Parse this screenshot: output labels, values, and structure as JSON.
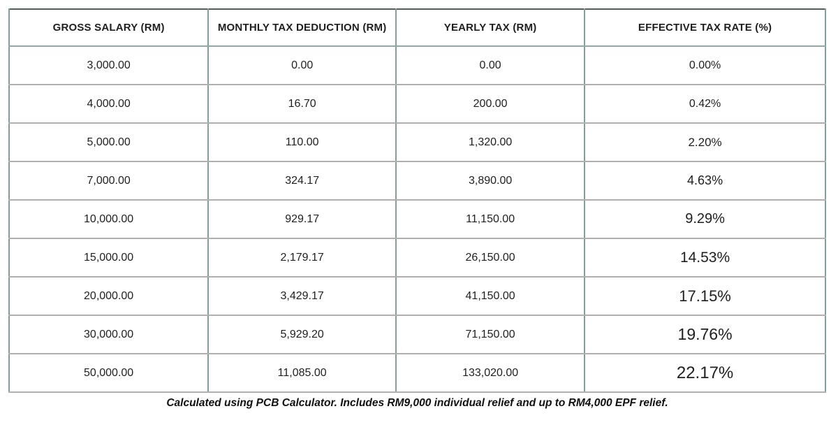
{
  "chart_data": {
    "type": "table",
    "columns": [
      "GROSS SALARY (RM)",
      "MONTHLY TAX DEDUCTION (RM)",
      "YEARLY TAX (RM)",
      "EFFECTIVE TAX RATE (%)"
    ],
    "rows": [
      [
        "3,000.00",
        "0.00",
        "0.00",
        "0.00%"
      ],
      [
        "4,000.00",
        "16.70",
        "200.00",
        "0.42%"
      ],
      [
        "5,000.00",
        "110.00",
        "1,320.00",
        "2.20%"
      ],
      [
        "7,000.00",
        "324.17",
        "3,890.00",
        "4.63%"
      ],
      [
        "10,000.00",
        "929.17",
        "11,150.00",
        "9.29%"
      ],
      [
        "15,000.00",
        "2,179.17",
        "26,150.00",
        "14.53%"
      ],
      [
        "20,000.00",
        "3,429.17",
        "41,150.00",
        "17.15%"
      ],
      [
        "30,000.00",
        "5,929.20",
        "71,150.00",
        "19.76%"
      ],
      [
        "50,000.00",
        "11,085.00",
        "133,020.00",
        "22.17%"
      ]
    ],
    "rate_font_px": [
      16,
      16,
      17,
      18,
      20,
      21,
      22,
      23,
      24
    ],
    "note": "Calculated using PCB Calculator. Includes RM9,000 individual relief and up to RM4,000 EPF relief."
  },
  "colors": {
    "outer_border": "#4f5f5f",
    "vertical_border": "#849c9c",
    "horizontal_border": "#b5aeae",
    "text": "#1f1f1f"
  }
}
